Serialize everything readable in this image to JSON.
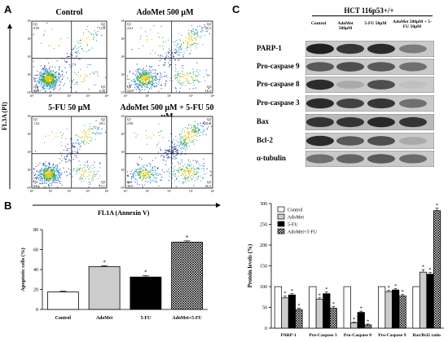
{
  "panels": {
    "a": "A",
    "b": "B",
    "c": "C"
  },
  "flow": {
    "y_axis": "FL3A (PI)",
    "x_axis": "FL1A (Annexin V)",
    "plots": [
      {
        "title": "Control",
        "q1": "0.95",
        "q2": "12.0",
        "q3": "6.38",
        "q4": "80.8"
      },
      {
        "title": "AdoMet 500 μM",
        "q1": "2.61",
        "q2": "26.5",
        "q3": "16.3",
        "q4": "54.6"
      },
      {
        "title": "5-FU 50 μM",
        "q1": "1.52",
        "q2": "20.1",
        "q3": "13.1",
        "q4": "65.2"
      },
      {
        "title": "AdoMet 500 μM + 5-FU 50 μM",
        "q1": "2.00",
        "q2": "41.8",
        "q3": "26.3",
        "q4": "30.0"
      }
    ],
    "tick_labels": [
      "10⁰",
      "10¹",
      "10²",
      "10³",
      "10⁴"
    ]
  },
  "apoptosis": {
    "colors": {
      "control": "#ffffff",
      "adomet": "#cccccc",
      "fu": "#000000",
      "combo": "pattern"
    },
    "chart_data": {
      "type": "bar",
      "categories": [
        "Control",
        "AdoMet",
        "5-FU",
        "AdoMet+5-FU"
      ],
      "values": [
        17.5,
        43,
        32.5,
        67.5
      ],
      "errors": [
        0.8,
        0.8,
        1.2,
        1.2
      ],
      "significance": [
        "",
        "*",
        "*",
        "*"
      ],
      "ylabel": "Apoptotic cells (%)",
      "ylim": [
        0,
        80
      ],
      "yticks": [
        0,
        20,
        40,
        60,
        80
      ]
    }
  },
  "western": {
    "title": "HCT 116p53+/+",
    "lanes": [
      "Control",
      "AdoMet 500μM",
      "5-FU 50μM",
      "AdoMet 500μM + 5-FU 50μM"
    ],
    "proteins": [
      "PARP-1",
      "Pro-caspase 9",
      "Pro-caspase 8",
      "Pro-caspase 3",
      "Bax",
      "Bcl-2",
      "α-tubulin"
    ]
  },
  "protein_chart": {
    "chart_data": {
      "type": "bar",
      "categories": [
        "PARP-1",
        "Pro-Caspase 3",
        "Pro-Caspase 8",
        "Pro-Caspase 9",
        "Bax/Bcl2 ratio"
      ],
      "series": [
        {
          "name": "Control",
          "values": [
            100,
            100,
            100,
            100,
            100
          ],
          "errors": [
            0,
            0,
            0,
            0,
            0
          ],
          "significance": [
            "",
            "",
            "",
            "",
            ""
          ]
        },
        {
          "name": "AdoMet",
          "values": [
            73,
            70,
            13,
            88,
            135
          ],
          "errors": [
            4,
            3,
            2,
            3,
            6
          ],
          "significance": [
            "*",
            "*",
            "*",
            "*",
            "*"
          ]
        },
        {
          "name": "5-FU",
          "values": [
            80,
            83,
            38,
            92,
            130
          ],
          "errors": [
            3,
            4,
            3,
            3,
            4
          ],
          "significance": [
            "*",
            "*",
            "*",
            "*",
            "*"
          ]
        },
        {
          "name": "AdoMet+5-FU",
          "values": [
            45,
            48,
            8,
            78,
            283
          ],
          "errors": [
            3,
            4,
            2,
            3,
            6
          ],
          "significance": [
            "*",
            "*",
            "*",
            "*",
            "*"
          ]
        }
      ],
      "ylabel": "Protein levels (%)",
      "ylim": [
        0,
        300
      ],
      "yticks": [
        0,
        50,
        100,
        150,
        200,
        250,
        300
      ],
      "legend_position": "top-left"
    }
  }
}
